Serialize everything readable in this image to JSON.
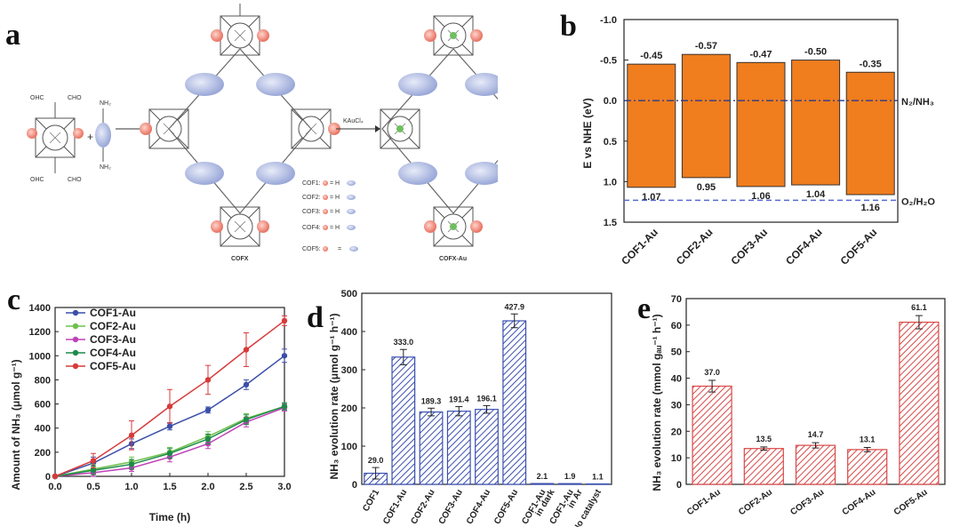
{
  "panels": {
    "a": "a",
    "b": "b",
    "c": "c",
    "d": "d",
    "e": "e"
  },
  "schematic": {
    "step_reagent": "KAuCl₄",
    "cofx_label": "COFX",
    "cofx_au_label": "COFX-Au",
    "monomer_labels": [
      "OHC",
      "CHO",
      "OHC",
      "CHO",
      "NH₂",
      "NH₂"
    ],
    "legend_rows": [
      {
        "name": "COF1:",
        "eq": "= H"
      },
      {
        "name": "COF2:",
        "eq": "= H"
      },
      {
        "name": "COF3:",
        "eq": "= H"
      },
      {
        "name": "COF4:",
        "eq": "= H"
      },
      {
        "name": "COF5:",
        "eq": "="
      }
    ]
  },
  "chart_data": [
    {
      "id": "b",
      "type": "bar",
      "ylabel": "E vs NHE (eV)",
      "ylim": [
        -1.0,
        1.5
      ],
      "y_inverted": true,
      "yticks": [
        "-1.0",
        "-0.5",
        "0.0",
        "0.5",
        "1.0",
        "1.5"
      ],
      "categories": [
        "COF1-Au",
        "COF2-Au",
        "COF3-Au",
        "COF4-Au",
        "COF5-Au"
      ],
      "top_values": [
        -0.45,
        -0.57,
        -0.47,
        -0.5,
        -0.35
      ],
      "bottom_values": [
        1.07,
        0.95,
        1.06,
        1.04,
        1.16
      ],
      "top_labels": [
        "-0.45",
        "-0.57",
        "-0.47",
        "-0.50",
        "-0.35"
      ],
      "bottom_labels": [
        "1.07",
        "0.95",
        "1.06",
        "1.04",
        "1.16"
      ],
      "reference_lines": [
        {
          "value": 0.0,
          "label": "N₂/NH₃"
        },
        {
          "value": 1.23,
          "label": "O₂/H₂O"
        }
      ],
      "bar_color": "#f07d1e"
    },
    {
      "id": "c",
      "type": "line",
      "xlabel": "Time (h)",
      "ylabel": "Amount of NH₃ (μmol g⁻¹)",
      "xlim": [
        0.0,
        3.0
      ],
      "ylim": [
        0,
        1400
      ],
      "xticks": [
        "0.0",
        "0.5",
        "1.0",
        "1.5",
        "2.0",
        "2.5",
        "3.0"
      ],
      "yticks": [
        "0",
        "200",
        "400",
        "600",
        "800",
        "1000",
        "1200",
        "1400"
      ],
      "x": [
        0.0,
        0.5,
        1.0,
        1.5,
        2.0,
        2.5,
        3.0
      ],
      "legend_position": "top-left",
      "series": [
        {
          "name": "COF1-Au",
          "color": "#3b4fa8",
          "values": [
            0,
            110,
            270,
            415,
            550,
            760,
            1000
          ],
          "errors": [
            0,
            50,
            40,
            30,
            25,
            40,
            55
          ]
        },
        {
          "name": "COF2-Au",
          "color": "#6dc04b",
          "values": [
            0,
            60,
            120,
            200,
            330,
            480,
            580
          ],
          "errors": [
            0,
            40,
            40,
            40,
            40,
            40,
            30
          ]
        },
        {
          "name": "COF3-Au",
          "color": "#c040b8",
          "values": [
            0,
            30,
            70,
            160,
            270,
            450,
            570
          ],
          "errors": [
            0,
            30,
            30,
            40,
            40,
            40,
            30
          ]
        },
        {
          "name": "COF4-Au",
          "color": "#1f8a4a",
          "values": [
            0,
            50,
            100,
            190,
            310,
            470,
            580
          ],
          "errors": [
            0,
            35,
            40,
            40,
            40,
            40,
            30
          ]
        },
        {
          "name": "COF5-Au",
          "color": "#d83a3a",
          "values": [
            0,
            130,
            340,
            580,
            800,
            1050,
            1290
          ],
          "errors": [
            0,
            60,
            120,
            140,
            120,
            140,
            40
          ]
        }
      ]
    },
    {
      "id": "d",
      "type": "bar",
      "ylabel": "NH₃ evolution rate (μmol g⁻¹ h⁻¹)",
      "ylim": [
        0,
        500
      ],
      "yticks": [
        "0",
        "100",
        "200",
        "300",
        "400",
        "500"
      ],
      "categories": [
        "COF1",
        "COF1-Au",
        "COF2-Au",
        "COF3-Au",
        "COF4-Au",
        "COF5-Au",
        "COF1-Au\nin dark",
        "COF1-Au\nin Ar",
        "No catalyst"
      ],
      "values": [
        29.0,
        333.0,
        189.3,
        191.4,
        196.1,
        427.9,
        2.1,
        1.9,
        1.1
      ],
      "value_labels": [
        "29.0",
        "333.0",
        "189.3",
        "191.4",
        "196.1",
        "427.9",
        "2.1",
        "1.9",
        "1.1"
      ],
      "errors": [
        15,
        20,
        10,
        12,
        10,
        18,
        0,
        0,
        0
      ],
      "bar_color": "#3a4fb0"
    },
    {
      "id": "e",
      "type": "bar",
      "ylabel": "NH₃ evolution rate (mmol gₐᵤ⁻¹ h⁻¹)",
      "ylim": [
        0,
        70
      ],
      "yticks": [
        "0",
        "10",
        "20",
        "30",
        "40",
        "50",
        "60",
        "70"
      ],
      "categories": [
        "COF1-Au",
        "COF2-Au",
        "COF3-Au",
        "COF4-Au",
        "COF5-Au"
      ],
      "values": [
        37.0,
        13.5,
        14.7,
        13.1,
        61.1
      ],
      "value_labels": [
        "37.0",
        "13.5",
        "14.7",
        "13.1",
        "61.1"
      ],
      "errors": [
        2.2,
        0.6,
        1.0,
        0.8,
        2.5
      ],
      "bar_color": "#d84848"
    }
  ]
}
